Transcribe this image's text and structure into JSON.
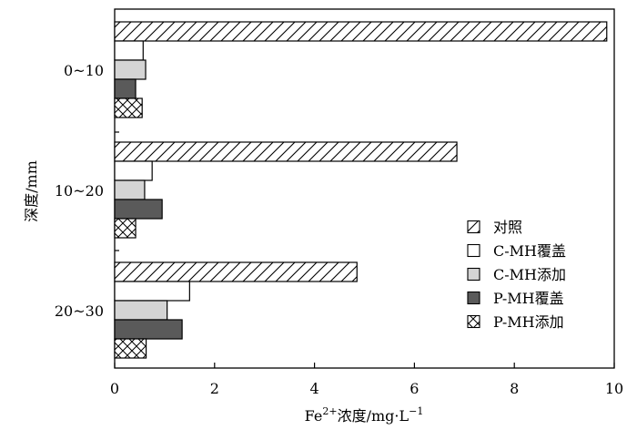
{
  "chart_data": {
    "type": "bar",
    "orientation": "horizontal",
    "title": "",
    "xlabel": "Fe<sup>2+</sup>浓度/mg·L<sup>−1</sup>",
    "xlabel_parts": {
      "prefix": "Fe",
      "sup1": "2+",
      "middle": "浓度/mg·L",
      "sup2": "−1"
    },
    "ylabel": "深度/mm",
    "xlim": [
      0,
      10
    ],
    "xticks": [
      "0",
      "2",
      "4",
      "6",
      "8",
      "10"
    ],
    "categories": [
      "0~10",
      "10~20",
      "20~30"
    ],
    "series": [
      {
        "name": "对照",
        "values": [
          9.85,
          6.85,
          4.85
        ],
        "pattern": "diagonal-hatch"
      },
      {
        "name": "C-MH覆盖",
        "values": [
          0.57,
          0.75,
          1.5
        ],
        "pattern": "white"
      },
      {
        "name": "C-MH添加",
        "values": [
          0.62,
          0.6,
          1.05
        ],
        "pattern": "light-gray"
      },
      {
        "name": "P-MH覆盖",
        "values": [
          0.42,
          0.95,
          1.35
        ],
        "pattern": "dark-gray"
      },
      {
        "name": "P-MH添加",
        "values": [
          0.55,
          0.42,
          0.63
        ],
        "pattern": "cross-hatch"
      }
    ],
    "legend_position": "bottom-right",
    "grid": false,
    "colors": {
      "light_gray": "#d4d4d4",
      "dark_gray": "#5a5a5a",
      "white": "#ffffff",
      "stroke": "#000000"
    }
  }
}
